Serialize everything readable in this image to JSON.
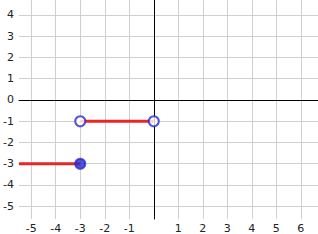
{
  "chart_data": {
    "type": "line",
    "xlim": [
      -5.5,
      6.7
    ],
    "ylim": [
      -5.6,
      4.7
    ],
    "xticks": [
      -5,
      -4,
      -3,
      -2,
      -1,
      1,
      2,
      3,
      4,
      5,
      6
    ],
    "yticks": [
      -5,
      -4,
      -3,
      -2,
      -1,
      0,
      1,
      2,
      3,
      4
    ],
    "grid": true,
    "lines": [
      {
        "x": [
          -5.5,
          -3
        ],
        "values": [
          -3,
          -3
        ],
        "color": "#e8262a"
      },
      {
        "x": [
          -3,
          0
        ],
        "values": [
          -1,
          -1
        ],
        "color": "#e8262a"
      }
    ],
    "endpoints": [
      {
        "x": -3,
        "y": -3,
        "marker": "filled",
        "color": "#2a2ad0"
      },
      {
        "x": -3,
        "y": -1,
        "marker": "open",
        "color": "#2a2ad0"
      },
      {
        "x": 0,
        "y": -1,
        "marker": "open",
        "color": "#2a2ad0"
      }
    ]
  }
}
